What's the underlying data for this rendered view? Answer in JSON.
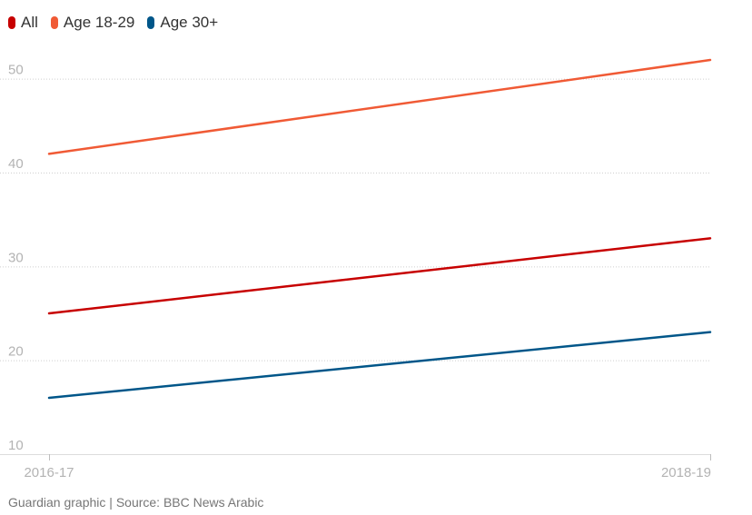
{
  "legend": [
    {
      "label": "All",
      "color": "#c70000"
    },
    {
      "label": "Age 18-29",
      "color": "#f05a35"
    },
    {
      "label": "Age 30+",
      "color": "#005689"
    }
  ],
  "source": "Guardian graphic | Source: BBC News Arabic",
  "chart_data": {
    "type": "line",
    "title": "",
    "xlabel": "",
    "ylabel": "",
    "x": [
      "2016-17",
      "2018-19"
    ],
    "ylim": [
      10,
      52
    ],
    "yticks": [
      10,
      20,
      30,
      40,
      50
    ],
    "grid": true,
    "legend_position": "top-left",
    "series": [
      {
        "name": "All",
        "color": "#c70000",
        "values": [
          25,
          33
        ]
      },
      {
        "name": "Age 18-29",
        "color": "#f05a35",
        "values": [
          42,
          52
        ]
      },
      {
        "name": "Age 30+",
        "color": "#005689",
        "values": [
          16,
          23
        ]
      }
    ]
  }
}
